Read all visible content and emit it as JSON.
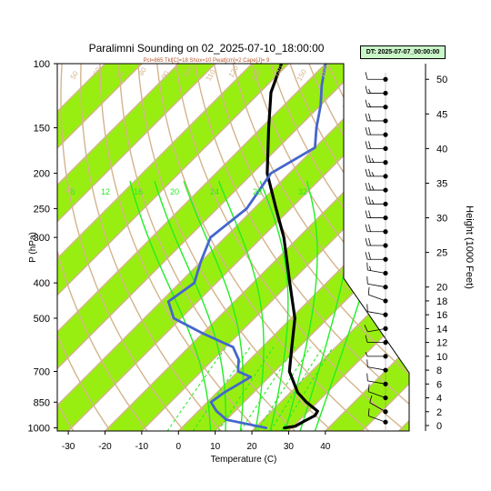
{
  "chart_data": {
    "type": "line",
    "title": "Paralimni Sounding on 02_2025-07-10_18:00:00",
    "subtitle": "Pcl=865 Tkl[C]=18 Shox=10 Pwat[cm]=2 Cape[J]= 9",
    "dt_label": "DT: 2025-07-07_00:00:00",
    "xlabel": "Temperature (C)",
    "ylabel": "P (hPa)",
    "y2label": "Height (1000 Feet)",
    "xlim": [
      -33,
      45
    ],
    "ylim": [
      1020,
      100
    ],
    "x_ticks": [
      -30,
      -20,
      -10,
      0,
      10,
      20,
      30,
      40
    ],
    "y_ticks": [
      100,
      150,
      200,
      250,
      300,
      400,
      500,
      700,
      850,
      1000
    ],
    "height_ticks": [
      0,
      2,
      4,
      6,
      8,
      10,
      12,
      14,
      16,
      18,
      20,
      25,
      30,
      35,
      40,
      45,
      50
    ],
    "mixing_ratio_labels": [
      "8",
      "12",
      "16",
      "20",
      "24",
      "28",
      "32"
    ],
    "dry_adiabat_labels": [
      "-30",
      "30",
      "20",
      "10",
      "0",
      "-10",
      "50",
      "60",
      "70",
      "80",
      "90",
      "100",
      "110",
      "120",
      "130",
      "140",
      "150",
      "160"
    ],
    "series": [
      {
        "color": "#000000",
        "points": [
          [
            1000,
            28
          ],
          [
            990,
            30.5
          ],
          [
            975,
            31
          ],
          [
            960,
            31.5
          ],
          [
            925,
            33
          ],
          [
            900,
            32.5
          ],
          [
            850,
            27
          ],
          [
            800,
            22
          ],
          [
            700,
            14
          ],
          [
            600,
            8
          ],
          [
            500,
            1
          ],
          [
            400,
            -10
          ],
          [
            300,
            -24
          ],
          [
            250,
            -34
          ],
          [
            200,
            -46
          ],
          [
            150,
            -58
          ],
          [
            120,
            -67
          ],
          [
            100,
            -72
          ]
        ]
      },
      {
        "color": "#4466cc",
        "points": [
          [
            1000,
            23
          ],
          [
            950,
            10
          ],
          [
            900,
            5
          ],
          [
            850,
            1
          ],
          [
            800,
            2
          ],
          [
            725,
            5
          ],
          [
            700,
            0
          ],
          [
            650,
            -3
          ],
          [
            600,
            -8
          ],
          [
            550,
            -20
          ],
          [
            500,
            -32
          ],
          [
            450,
            -38
          ],
          [
            400,
            -36
          ],
          [
            350,
            -40
          ],
          [
            300,
            -44
          ],
          [
            250,
            -42
          ],
          [
            200,
            -45
          ],
          [
            170,
            -40
          ],
          [
            150,
            -45
          ],
          [
            130,
            -50
          ],
          [
            115,
            -55
          ],
          [
            100,
            -60
          ]
        ]
      }
    ],
    "wind_barbs": [
      {
        "h": 0.5,
        "dir": 290,
        "spd": 10
      },
      {
        "h": 2,
        "dir": 300,
        "spd": 10
      },
      {
        "h": 4,
        "dir": 290,
        "spd": 10
      },
      {
        "h": 6,
        "dir": 280,
        "spd": 10
      },
      {
        "h": 8,
        "dir": 280,
        "spd": 10
      },
      {
        "h": 10,
        "dir": 270,
        "spd": 5
      },
      {
        "h": 12,
        "dir": 270,
        "spd": 10
      },
      {
        "h": 14,
        "dir": 260,
        "spd": 10
      },
      {
        "h": 16,
        "dir": 280,
        "spd": 10
      },
      {
        "h": 18,
        "dir": 290,
        "spd": 10
      },
      {
        "h": 20,
        "dir": 280,
        "spd": 10
      },
      {
        "h": 22,
        "dir": 280,
        "spd": 15
      },
      {
        "h": 24,
        "dir": 270,
        "spd": 20
      },
      {
        "h": 26,
        "dir": 270,
        "spd": 20
      },
      {
        "h": 28,
        "dir": 270,
        "spd": 20
      },
      {
        "h": 30,
        "dir": 270,
        "spd": 20
      },
      {
        "h": 32,
        "dir": 270,
        "spd": 25
      },
      {
        "h": 34,
        "dir": 270,
        "spd": 25
      },
      {
        "h": 36,
        "dir": 270,
        "spd": 25
      },
      {
        "h": 38,
        "dir": 270,
        "spd": 25
      },
      {
        "h": 40,
        "dir": 270,
        "spd": 20
      },
      {
        "h": 42,
        "dir": 270,
        "spd": 20
      },
      {
        "h": 44,
        "dir": 270,
        "spd": 20
      },
      {
        "h": 46,
        "dir": 270,
        "spd": 15
      },
      {
        "h": 48,
        "dir": 270,
        "spd": 15
      },
      {
        "h": 50,
        "dir": 270,
        "spd": 10
      },
      {
        "h": 52,
        "dir": 270,
        "spd": 10
      }
    ],
    "colors": {
      "band": "#99ee11",
      "isotherm": "#d4b48c",
      "moist_adiabat": "#22ee22",
      "mixing_ratio": "#22ee22"
    },
    "grid": true,
    "skewed": true
  }
}
